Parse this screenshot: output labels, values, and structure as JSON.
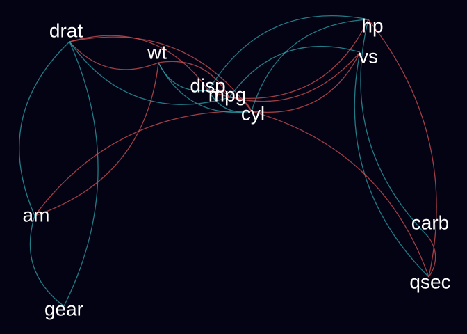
{
  "colors": {
    "background": "#030314",
    "positive": "#2fa4ab",
    "negative": "#d65357",
    "label": "#ffffff"
  },
  "graph": {
    "nodes": [
      {
        "id": "drat",
        "label": "drat"
      },
      {
        "id": "wt",
        "label": "wt"
      },
      {
        "id": "hp",
        "label": "hp"
      },
      {
        "id": "vs",
        "label": "vs"
      },
      {
        "id": "disp",
        "label": "disp"
      },
      {
        "id": "mpg",
        "label": "mpg"
      },
      {
        "id": "cyl",
        "label": "cyl"
      },
      {
        "id": "am",
        "label": "am"
      },
      {
        "id": "carb",
        "label": "carb"
      },
      {
        "id": "qsec",
        "label": "qsec"
      },
      {
        "id": "gear",
        "label": "gear"
      }
    ],
    "edges": [
      {
        "from": "drat",
        "to": "wt",
        "sign": "negative"
      },
      {
        "from": "drat",
        "to": "disp",
        "sign": "negative"
      },
      {
        "from": "drat",
        "to": "mpg",
        "sign": "positive"
      },
      {
        "from": "drat",
        "to": "cyl",
        "sign": "negative"
      },
      {
        "from": "drat",
        "to": "am",
        "sign": "positive"
      },
      {
        "from": "drat",
        "to": "gear",
        "sign": "positive"
      },
      {
        "from": "wt",
        "to": "disp",
        "sign": "positive"
      },
      {
        "from": "wt",
        "to": "mpg",
        "sign": "negative"
      },
      {
        "from": "wt",
        "to": "cyl",
        "sign": "positive"
      },
      {
        "from": "wt",
        "to": "am",
        "sign": "negative"
      },
      {
        "from": "hp",
        "to": "disp",
        "sign": "positive"
      },
      {
        "from": "hp",
        "to": "mpg",
        "sign": "negative"
      },
      {
        "from": "hp",
        "to": "cyl",
        "sign": "positive"
      },
      {
        "from": "hp",
        "to": "qsec",
        "sign": "negative"
      },
      {
        "from": "hp",
        "to": "carb",
        "sign": "positive"
      },
      {
        "from": "vs",
        "to": "disp",
        "sign": "negative"
      },
      {
        "from": "vs",
        "to": "mpg",
        "sign": "positive"
      },
      {
        "from": "vs",
        "to": "cyl",
        "sign": "negative"
      },
      {
        "from": "vs",
        "to": "qsec",
        "sign": "positive"
      },
      {
        "from": "disp",
        "to": "mpg",
        "sign": "negative"
      },
      {
        "from": "disp",
        "to": "cyl",
        "sign": "positive"
      },
      {
        "from": "mpg",
        "to": "cyl",
        "sign": "negative"
      },
      {
        "from": "cyl",
        "to": "am",
        "sign": "negative"
      },
      {
        "from": "cyl",
        "to": "qsec",
        "sign": "negative"
      },
      {
        "from": "am",
        "to": "gear",
        "sign": "positive"
      },
      {
        "from": "carb",
        "to": "qsec",
        "sign": "negative"
      }
    ]
  }
}
